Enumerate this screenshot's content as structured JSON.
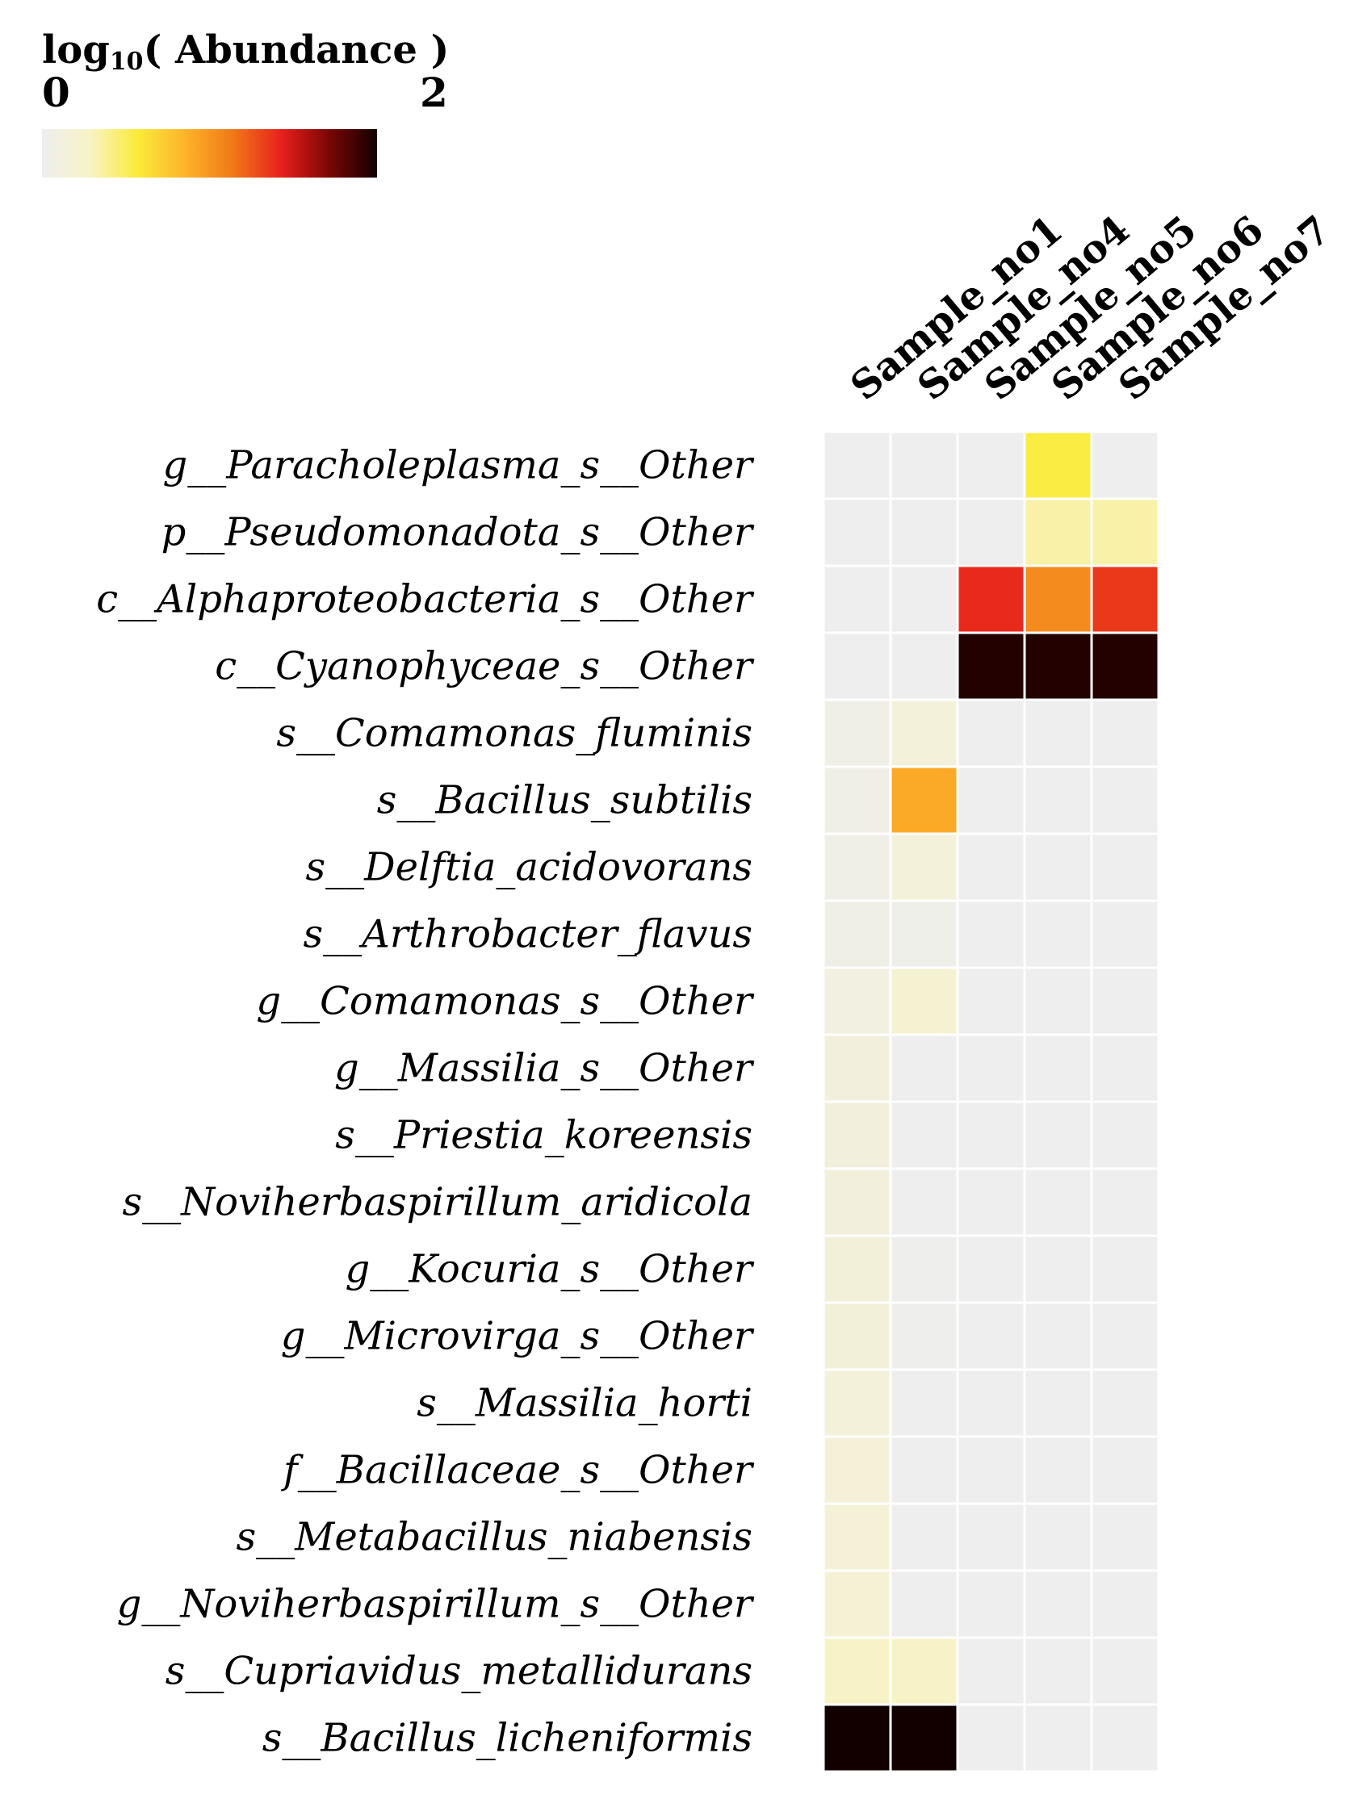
{
  "chart_data": {
    "type": "heatmap",
    "colorbar": {
      "title_prefix": "log",
      "title_subscript": "10",
      "title_suffix": "( Abundance )",
      "min_label": "0",
      "max_label": "2",
      "range": [
        0,
        2
      ],
      "colormap": "hot_r",
      "colors": [
        "#eeeeee",
        "#f8f3c6",
        "#fbeb3a",
        "#fdb32a",
        "#f07818",
        "#e8201c",
        "#7a0606",
        "#120000"
      ],
      "placement": "top-left"
    },
    "columns": [
      "Sample_no1",
      "Sample_no4",
      "Sample_no5",
      "Sample_no6",
      "Sample_no7"
    ],
    "rows": [
      "g__Paracholeplasma_s__Other",
      "p__Pseudomonadota_s__Other",
      "c__Alphaproteobacteria_s__Other",
      "c__Cyanophyceae_s__Other",
      "s__Comamonas_fluminis",
      "s__Bacillus_subtilis",
      "s__Delftia_acidovorans",
      "s__Arthrobacter_flavus",
      "g__Comamonas_s__Other",
      "g__Massilia_s__Other",
      "s__Priestia_koreensis",
      "s__Noviherbaspirillum_aridicola",
      "g__Kocuria_s__Other",
      "g__Microvirga_s__Other",
      "s__Massilia_horti",
      "f__Bacillaceae_s__Other",
      "s__Metabacillus_niabensis",
      "g__Noviherbaspirillum_s__Other",
      "s__Cupriavidus_metallidurans",
      "s__Bacillus_licheniformis"
    ],
    "values": [
      [
        0,
        0,
        0,
        0.55,
        0
      ],
      [
        0,
        0,
        0,
        0.35,
        0.35
      ],
      [
        0,
        0,
        1.4,
        1.05,
        1.35
      ],
      [
        0,
        0,
        1.95,
        1.95,
        1.95
      ],
      [
        0.05,
        0.15,
        0,
        0,
        0
      ],
      [
        0.05,
        0.9,
        0,
        0,
        0
      ],
      [
        0.05,
        0.15,
        0,
        0,
        0
      ],
      [
        0.05,
        0.03,
        0,
        0,
        0
      ],
      [
        0.1,
        0.2,
        0,
        0,
        0
      ],
      [
        0.12,
        0,
        0,
        0,
        0
      ],
      [
        0.12,
        0,
        0,
        0,
        0
      ],
      [
        0.12,
        0,
        0,
        0,
        0
      ],
      [
        0.14,
        0.01,
        0,
        0,
        0
      ],
      [
        0.14,
        0.01,
        0,
        0,
        0
      ],
      [
        0.15,
        0,
        0,
        0,
        0
      ],
      [
        0.16,
        0,
        0,
        0,
        0
      ],
      [
        0.17,
        0,
        0,
        0,
        0
      ],
      [
        0.18,
        0,
        0,
        0,
        0
      ],
      [
        0.28,
        0.28,
        0,
        0,
        0
      ],
      [
        2.0,
        2.0,
        0,
        0,
        0
      ]
    ],
    "grid": true
  }
}
